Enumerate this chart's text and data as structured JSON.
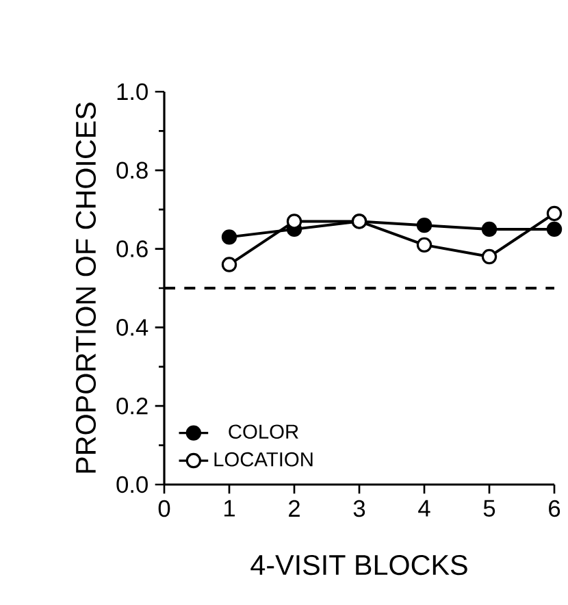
{
  "chart_data": {
    "type": "line",
    "xlabel": "4-VISIT BLOCKS",
    "ylabel": "PROPORTION OF CHOICES",
    "x": [
      1,
      2,
      3,
      4,
      5,
      6
    ],
    "series": [
      {
        "name": "COLOR",
        "color": "#000000",
        "values": [
          0.63,
          0.65,
          0.67,
          0.66,
          0.65,
          0.65
        ]
      },
      {
        "name": "LOCATION",
        "color": "#000000",
        "values": [
          0.56,
          0.67,
          0.67,
          0.61,
          0.58,
          0.69
        ]
      }
    ],
    "xlim": [
      0,
      6
    ],
    "xticks": [
      0,
      1,
      2,
      3,
      4,
      5,
      6
    ],
    "ylim": [
      0,
      1
    ],
    "yticks": [
      {
        "value": 0,
        "label": "0.0"
      },
      0.2,
      0.4,
      0.6,
      0.8,
      {
        "value": 1,
        "label": "1.0"
      }
    ],
    "ref_lines": [
      {
        "axis": "y",
        "value": 0.5,
        "line_style": "dashed"
      }
    ],
    "marker": "circle",
    "line_style": "solid",
    "legend": "bottom left",
    "grid": false
  }
}
